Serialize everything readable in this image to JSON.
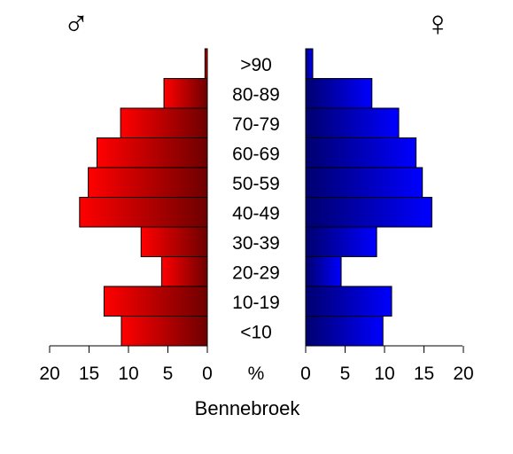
{
  "chart_data": {
    "type": "bar",
    "orientation": "horizontal",
    "layout": "population-pyramid",
    "title": "Bennebroek",
    "axis_unit": "%",
    "xlim": [
      0,
      20
    ],
    "ticks": [
      "20",
      "15",
      "10",
      "5",
      "0",
      "0",
      "5",
      "10",
      "15",
      "20"
    ],
    "categories": [
      "<10",
      "10-19",
      "20-29",
      "30-39",
      "40-49",
      "50-59",
      "60-69",
      "70-79",
      "80-89",
      ">90"
    ],
    "series": [
      {
        "symbol": "♂",
        "side": "left",
        "color": "#ff0000",
        "color_dark": "#6e0000",
        "values": [
          10.9,
          13.1,
          5.8,
          8.4,
          16.2,
          15.1,
          14.0,
          11.0,
          5.5,
          0.3
        ]
      },
      {
        "symbol": "♀",
        "side": "right",
        "color": "#0000ff",
        "color_dark": "#00006e",
        "values": [
          9.8,
          10.9,
          4.5,
          9.0,
          16.0,
          14.8,
          14.0,
          11.8,
          8.4,
          0.9
        ]
      }
    ],
    "grid": false,
    "legend": "none"
  }
}
